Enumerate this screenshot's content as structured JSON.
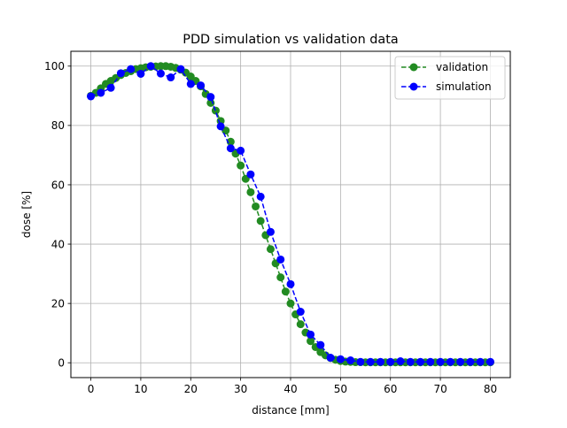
{
  "chart_data": {
    "type": "scatter",
    "title": "PDD simulation vs validation data",
    "xlabel": "distance [mm]",
    "ylabel": "dose [%]",
    "xlim": [
      -4,
      84
    ],
    "ylim": [
      -5,
      105
    ],
    "x_ticks": [
      0,
      10,
      20,
      30,
      40,
      50,
      60,
      70,
      80
    ],
    "y_ticks": [
      0,
      20,
      40,
      60,
      80,
      100
    ],
    "grid": true,
    "legend_position": "top-right",
    "series": [
      {
        "name": "validation",
        "color": "#228B22",
        "line_style": "dashed",
        "marker": "circle",
        "x": [
          0,
          1,
          2,
          3,
          4,
          5,
          6,
          7,
          8,
          9,
          10,
          11,
          12,
          13,
          14,
          15,
          16,
          17,
          18,
          19,
          20,
          21,
          22,
          23,
          24,
          25,
          26,
          27,
          28,
          29,
          30,
          31,
          32,
          33,
          34,
          35,
          36,
          37,
          38,
          39,
          40,
          41,
          42,
          43,
          44,
          45,
          46,
          47,
          48,
          49,
          50,
          51,
          52,
          53,
          54,
          55,
          56,
          57,
          58,
          59,
          60,
          61,
          62,
          63,
          64,
          65,
          66,
          67,
          68,
          69,
          70,
          71,
          72,
          73,
          74,
          75,
          76,
          77,
          78,
          79,
          80
        ],
        "y": [
          90,
          91,
          92.5,
          94,
          95,
          96,
          97,
          97.7,
          98.3,
          99,
          99.3,
          99.6,
          99.8,
          99.9,
          100,
          100,
          99.8,
          99.4,
          98.8,
          97.8,
          96.5,
          95,
          93.2,
          90.6,
          87.6,
          85,
          81.5,
          78.3,
          74.5,
          70.5,
          66.5,
          62,
          57.5,
          52.7,
          47.8,
          43,
          38.3,
          33.5,
          28.8,
          24,
          20,
          16.3,
          13,
          10.2,
          7.3,
          5.3,
          3.6,
          2.5,
          1.6,
          1.0,
          0.6,
          0.4,
          0.3,
          0.2,
          0.2,
          0.15,
          0.15,
          0.15,
          0.15,
          0.15,
          0.15,
          0.15,
          0.15,
          0.15,
          0.15,
          0.15,
          0.15,
          0.15,
          0.15,
          0.15,
          0.15,
          0.15,
          0.15,
          0.15,
          0.15,
          0.15,
          0.15,
          0.15,
          0.15,
          0.15,
          0.15
        ]
      },
      {
        "name": "simulation",
        "color": "#0000FF",
        "line_style": "dashed",
        "marker": "circle",
        "x": [
          0,
          2,
          4,
          6,
          8,
          10,
          12,
          14,
          16,
          18,
          20,
          22,
          24,
          26,
          28,
          30,
          32,
          34,
          36,
          38,
          40,
          42,
          44,
          46,
          48,
          50,
          52,
          54,
          56,
          58,
          60,
          62,
          64,
          66,
          68,
          70,
          72,
          74,
          76,
          78,
          80
        ],
        "y": [
          89.8,
          91,
          92.7,
          97.6,
          99,
          97.4,
          100,
          97.5,
          96.2,
          99,
          94,
          93.5,
          89.6,
          79.7,
          72.3,
          71.5,
          63.5,
          56,
          44.1,
          34.8,
          26.5,
          17.2,
          9.5,
          6,
          1.7,
          1.2,
          0.8,
          0.3,
          0.3,
          0.3,
          0.3,
          0.5,
          0.3,
          0.3,
          0.3,
          0.3,
          0.3,
          0.3,
          0.3,
          0.3,
          0.3
        ]
      }
    ]
  }
}
